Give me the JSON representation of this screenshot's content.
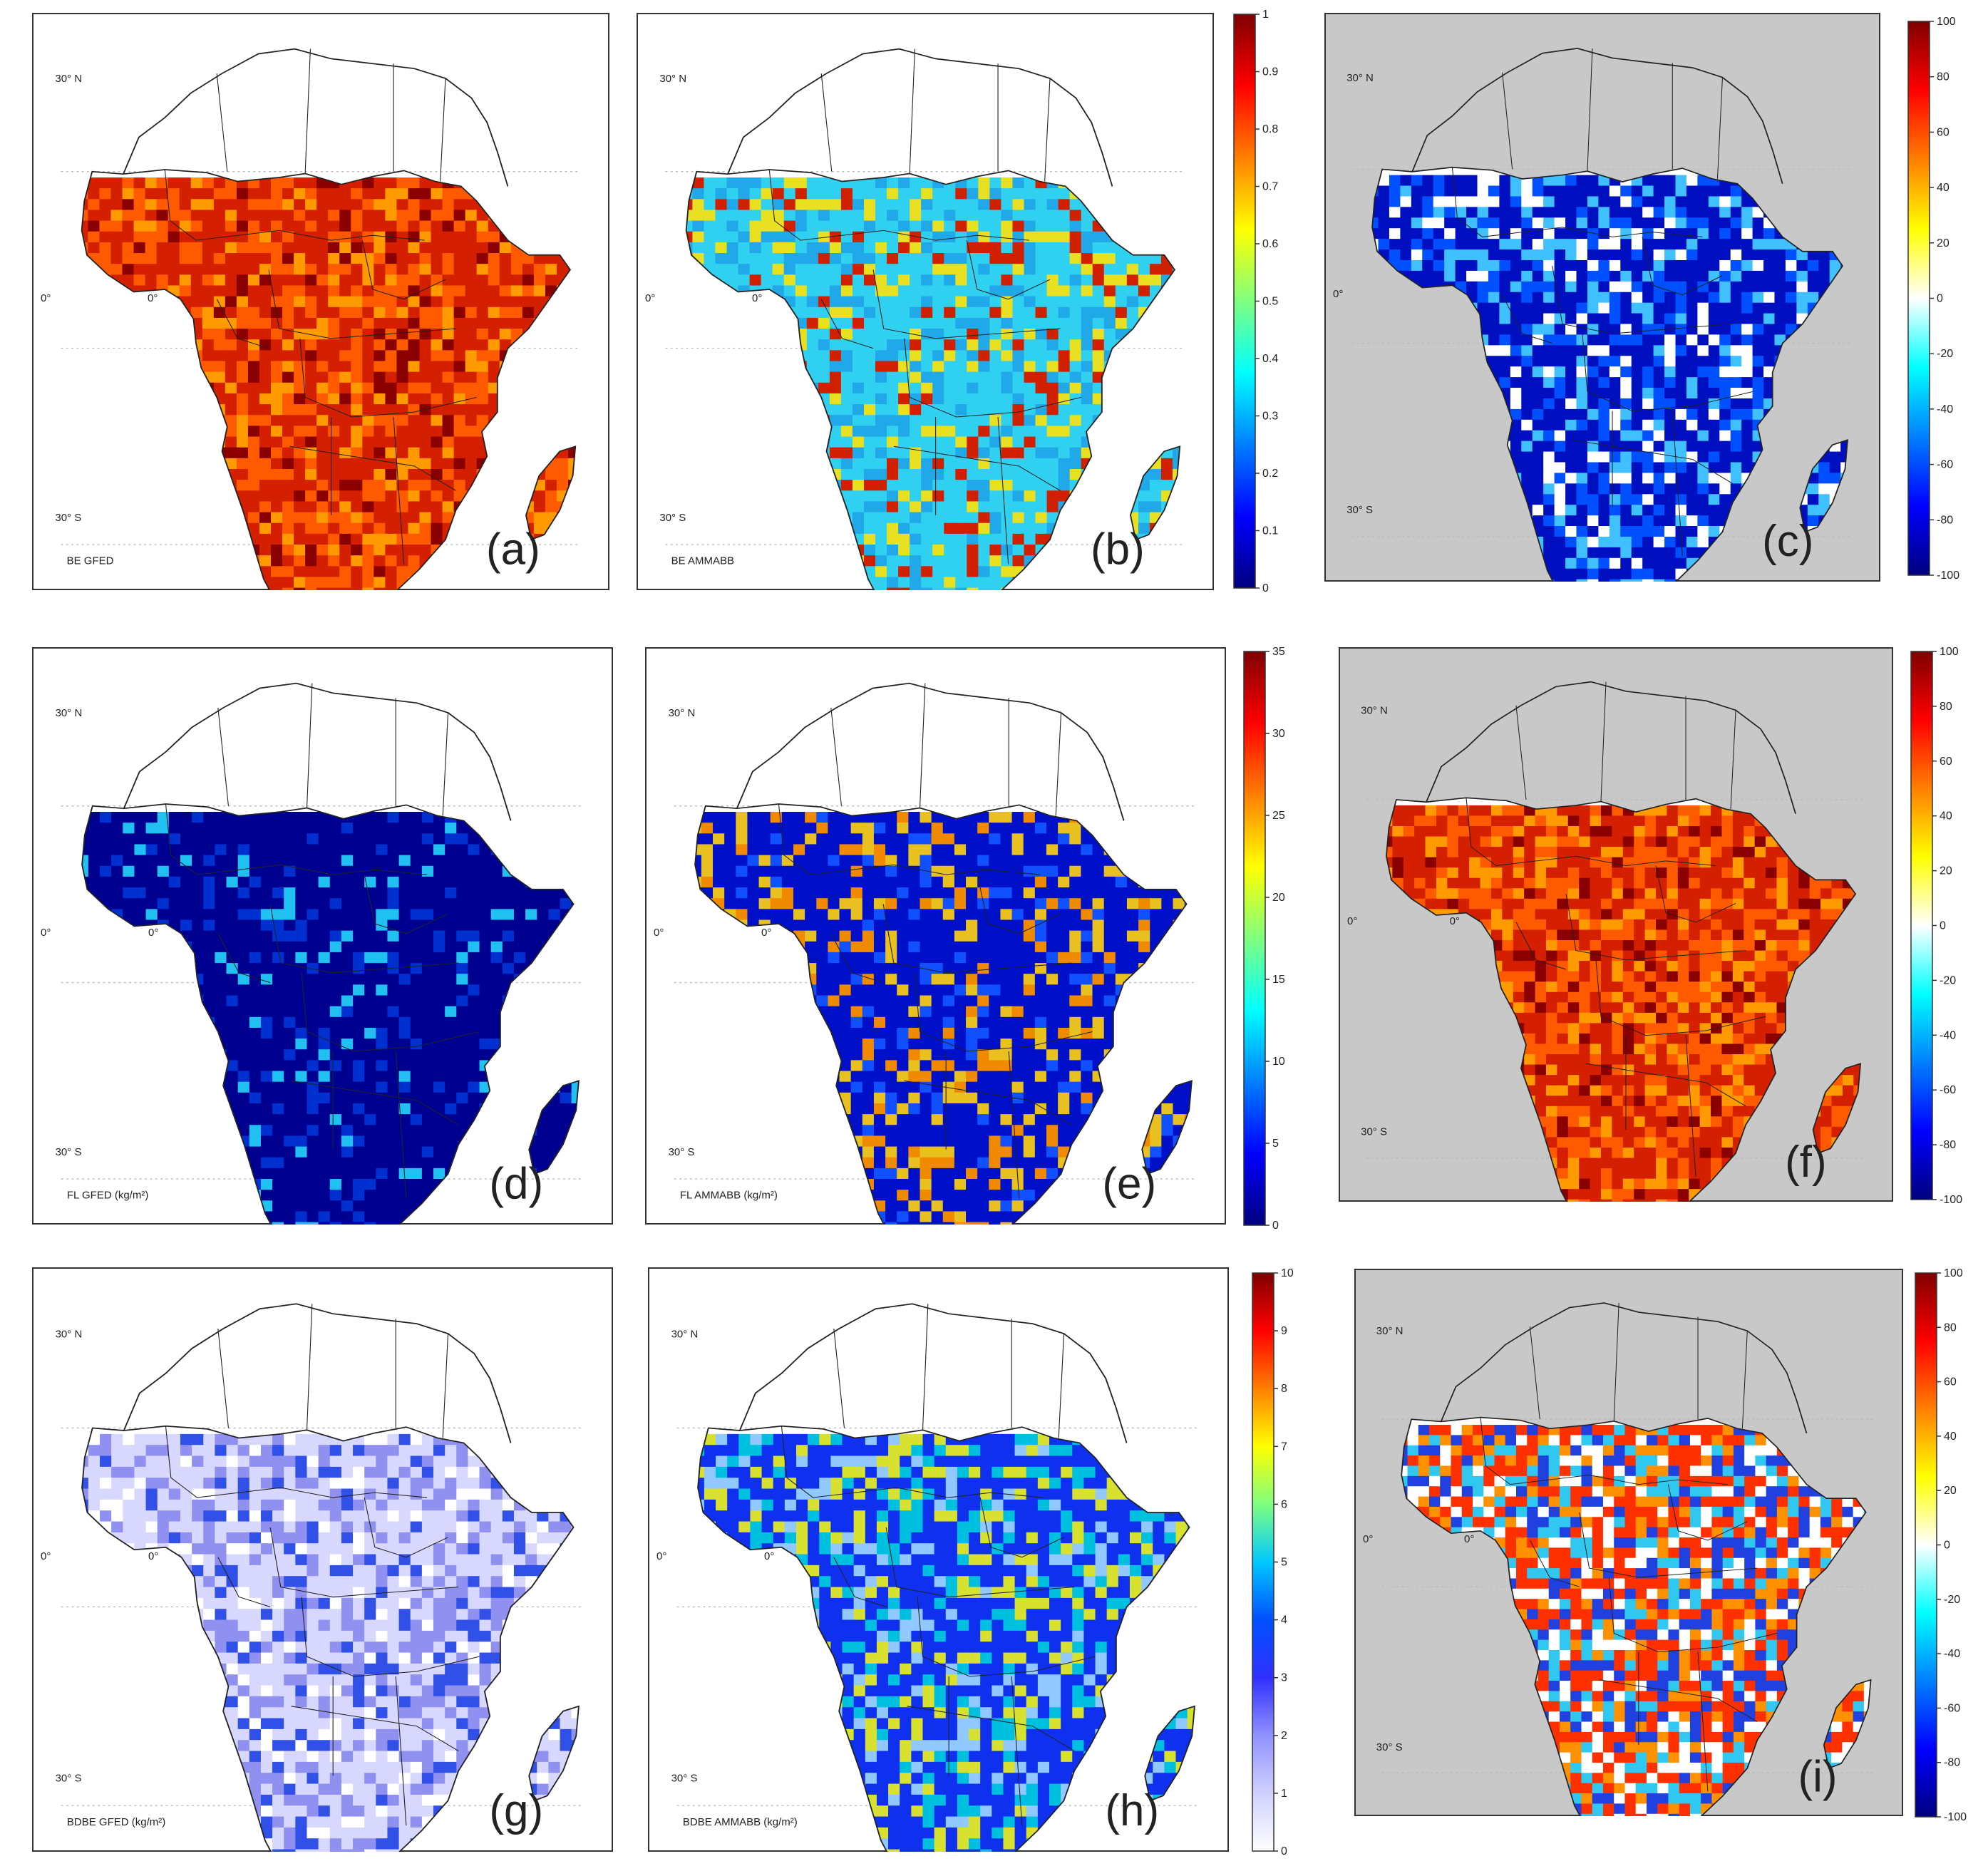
{
  "colors": {
    "panel_border": "#333333",
    "gray_background": "#c8c8c8",
    "land_outline": "#222222",
    "graticule": "#bbbbbb"
  },
  "colormaps": {
    "jet": [
      "#00007f",
      "#0000ff",
      "#007fff",
      "#00ffff",
      "#7fff7f",
      "#ffff00",
      "#ff7f00",
      "#ff0000",
      "#7f0000"
    ],
    "bluewhite_jet": [
      "#ffffff",
      "#d0d0ff",
      "#9090ff",
      "#3030ff",
      "#0050ff",
      "#00c8ff",
      "#7fff7f",
      "#ffff00",
      "#ff7f00",
      "#ff0000",
      "#7f0000"
    ],
    "diverging": [
      "#00007f",
      "#0000ff",
      "#007fff",
      "#00ffff",
      "#ffffff",
      "#ffff00",
      "#ff7f00",
      "#ff0000",
      "#7f0000"
    ]
  },
  "panels": [
    {
      "id": "a",
      "letter": "(a)",
      "caption": "BE GFED",
      "lat_n": "30° N",
      "lat_eq": "0°",
      "lat_s": "30° S",
      "lon0": "0°",
      "gray": false,
      "palette": "red"
    },
    {
      "id": "b",
      "letter": "(b)",
      "caption": "BE AMMABB",
      "lat_n": "30° N",
      "lat_eq": "0°",
      "lat_s": "30° S",
      "lon0": "0°",
      "gray": false,
      "palette": "cyan"
    },
    {
      "id": "c",
      "letter": "(c)",
      "caption": "",
      "lat_n": "30° N",
      "lat_eq": "0°",
      "lat_s": "30° S",
      "lon0": "",
      "gray": true,
      "palette": "blue"
    },
    {
      "id": "d",
      "letter": "(d)",
      "caption": "FL GFED (kg/m²)",
      "lat_n": "30° N",
      "lat_eq": "0°",
      "lat_s": "30° S",
      "lon0": "0°",
      "gray": false,
      "palette": "navy"
    },
    {
      "id": "e",
      "letter": "(e)",
      "caption": "FL AMMABB (kg/m²)",
      "lat_n": "30° N",
      "lat_eq": "0°",
      "lat_s": "30° S",
      "lon0": "0°",
      "gray": false,
      "palette": "navy_yellow"
    },
    {
      "id": "f",
      "letter": "(f)",
      "caption": "",
      "lat_n": "30° N",
      "lat_eq": "0°",
      "lat_s": "30° S",
      "lon0": "0°",
      "gray": true,
      "palette": "red"
    },
    {
      "id": "g",
      "letter": "(g)",
      "caption": "BDBE GFED (kg/m²)",
      "lat_n": "30° N",
      "lat_eq": "0°",
      "lat_s": "30° S",
      "lon0": "0°",
      "gray": false,
      "palette": "lavender"
    },
    {
      "id": "h",
      "letter": "(h)",
      "caption": "BDBE AMMABB (kg/m²)",
      "lat_n": "30° N",
      "lat_eq": "0°",
      "lat_s": "30° S",
      "lon0": "0°",
      "gray": false,
      "palette": "blue_yellow"
    },
    {
      "id": "i",
      "letter": "(i)",
      "caption": "",
      "lat_n": "30° N",
      "lat_eq": "0°",
      "lat_s": "30° S",
      "lon0": "0°",
      "gray": true,
      "palette": "mixed"
    }
  ],
  "colorbars": [
    {
      "id": "cb1",
      "cmap": "jet",
      "ticks": [
        "0",
        "0.1",
        "0.2",
        "0.3",
        "0.4",
        "0.5",
        "0.6",
        "0.7",
        "0.8",
        "0.9",
        "1"
      ]
    },
    {
      "id": "cb2",
      "cmap": "diverging",
      "ticks": [
        "-100",
        "-80",
        "-60",
        "-40",
        "-20",
        "0",
        "20",
        "40",
        "60",
        "80",
        "100"
      ]
    },
    {
      "id": "cb3",
      "cmap": "jet",
      "ticks": [
        "0",
        "5",
        "10",
        "15",
        "20",
        "25",
        "30",
        "35"
      ]
    },
    {
      "id": "cb4",
      "cmap": "diverging",
      "ticks": [
        "-100",
        "-80",
        "-60",
        "-40",
        "-20",
        "0",
        "20",
        "40",
        "60",
        "80",
        "100"
      ]
    },
    {
      "id": "cb5",
      "cmap": "bluewhite_jet",
      "ticks": [
        "0",
        "1",
        "2",
        "3",
        "4",
        "5",
        "6",
        "7",
        "8",
        "9",
        "10"
      ]
    },
    {
      "id": "cb6",
      "cmap": "diverging",
      "ticks": [
        "-100",
        "-80",
        "-60",
        "-40",
        "-20",
        "0",
        "20",
        "40",
        "60",
        "80",
        "100"
      ]
    }
  ]
}
